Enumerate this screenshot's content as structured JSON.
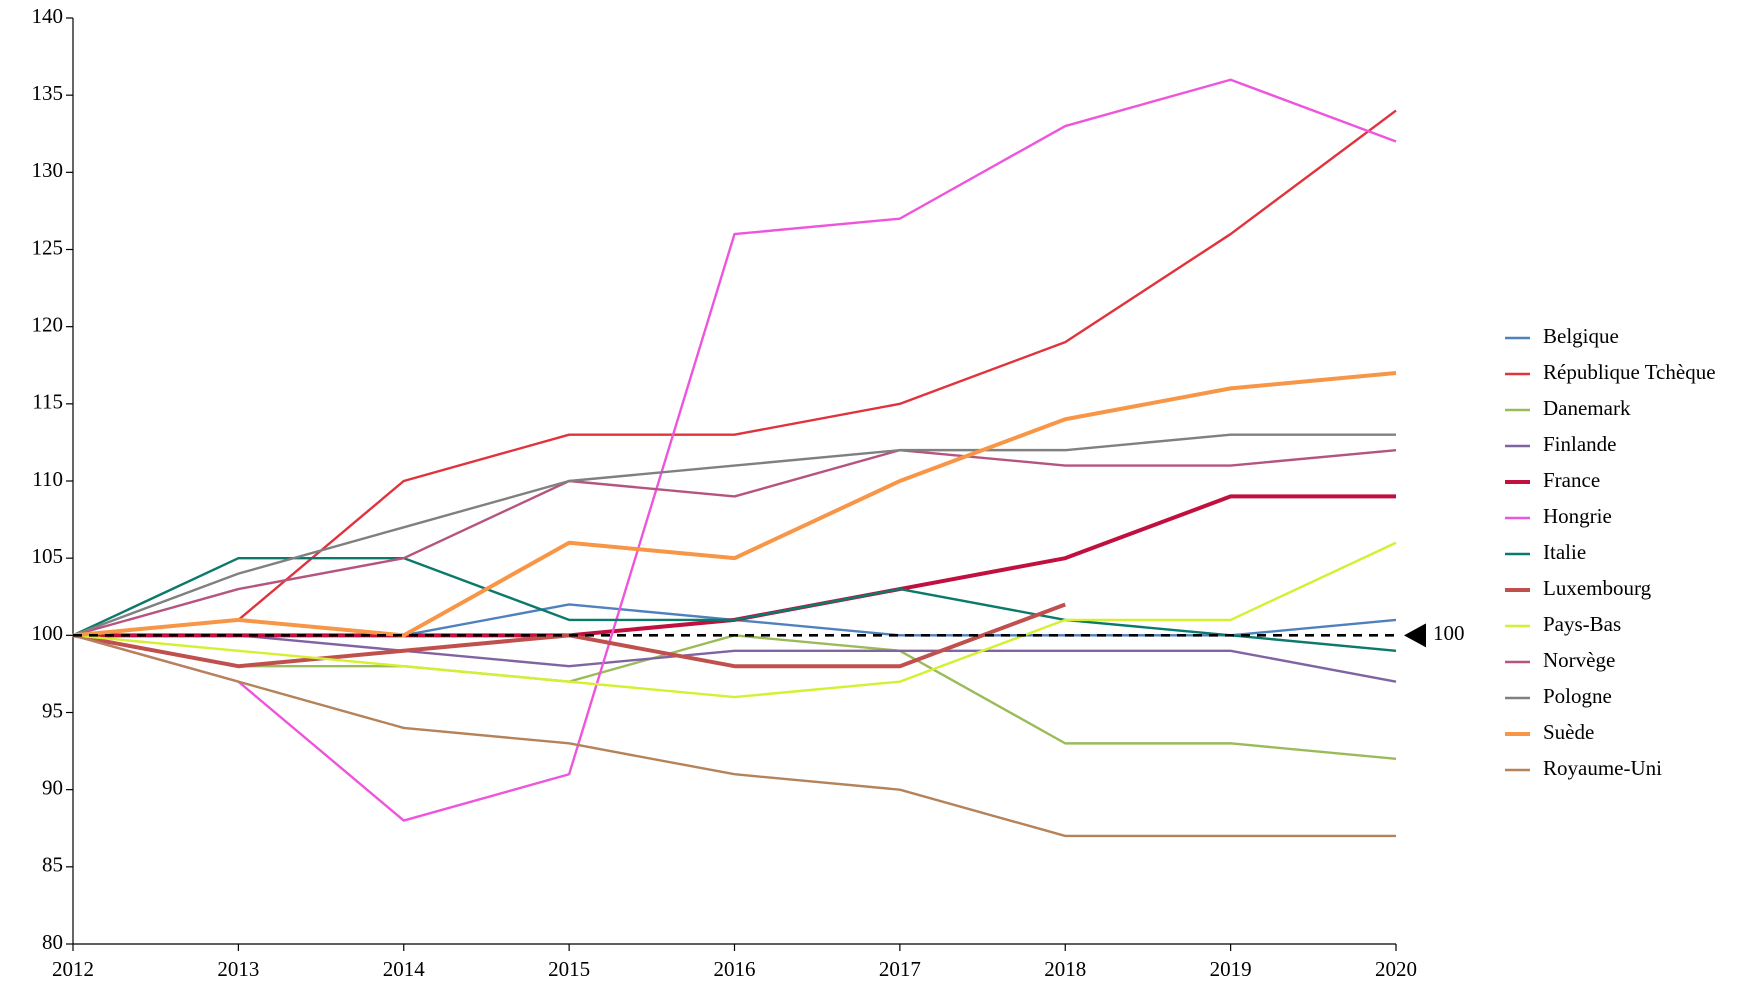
{
  "chart_data": {
    "type": "line",
    "x": [
      2012,
      2013,
      2014,
      2015,
      2016,
      2017,
      2018,
      2019,
      2020
    ],
    "xlim": [
      2012,
      2020
    ],
    "xticks": [
      2012,
      2013,
      2014,
      2015,
      2016,
      2017,
      2018,
      2019,
      2020
    ],
    "ylim": [
      80,
      140
    ],
    "yticks": [
      80,
      85,
      90,
      95,
      100,
      105,
      110,
      115,
      120,
      125,
      130,
      135,
      140
    ],
    "grid": false,
    "legend": "right",
    "reference_line": 100,
    "series": [
      {
        "name": "Belgique",
        "color": "#4f81bd",
        "values": [
          100,
          100,
          100,
          102,
          101,
          100,
          100,
          100,
          101
        ]
      },
      {
        "name": "République Tchèque",
        "color": "#e0333c",
        "values": [
          100,
          101,
          110,
          113,
          113,
          115,
          119,
          126,
          134
        ]
      },
      {
        "name": "Danemark",
        "color": "#9bbb59",
        "values": [
          100,
          98,
          98,
          97,
          100,
          99,
          93,
          93,
          92
        ]
      },
      {
        "name": "Finlande",
        "color": "#8064a2",
        "values": [
          100,
          100,
          99,
          98,
          99,
          99,
          99,
          99,
          97
        ]
      },
      {
        "name": "France",
        "color": "#c0103f",
        "values": [
          100,
          100,
          100,
          100,
          101,
          103,
          105,
          109,
          109
        ]
      },
      {
        "name": "Hongrie",
        "color": "#ee55dd",
        "values": [
          100,
          97,
          88,
          91,
          126,
          127,
          133,
          136,
          132
        ]
      },
      {
        "name": "Italie",
        "color": "#0b7a6a",
        "values": [
          100,
          105,
          105,
          101,
          101,
          103,
          101,
          100,
          99
        ]
      },
      {
        "name": "Luxembourg",
        "color": "#c0504d",
        "values": [
          100,
          98,
          99,
          100,
          98,
          98,
          102,
          null,
          null
        ]
      },
      {
        "name": "Pays-Bas",
        "color": "#d4f030",
        "values": [
          100,
          99,
          98,
          97,
          96,
          97,
          101,
          101,
          106
        ]
      },
      {
        "name": "Norvège",
        "color": "#b5557f",
        "values": [
          100,
          103,
          105,
          110,
          109,
          112,
          111,
          111,
          112
        ]
      },
      {
        "name": "Pologne",
        "color": "#808080",
        "values": [
          100,
          104,
          107,
          110,
          111,
          112,
          112,
          113,
          113
        ]
      },
      {
        "name": "Suède",
        "color": "#f79646",
        "values": [
          100,
          101,
          100,
          106,
          105,
          110,
          114,
          116,
          117
        ]
      },
      {
        "name": "Royaume-Uni",
        "color": "#b5835a",
        "values": [
          100,
          97,
          94,
          93,
          91,
          90,
          87,
          87,
          87
        ]
      }
    ]
  }
}
